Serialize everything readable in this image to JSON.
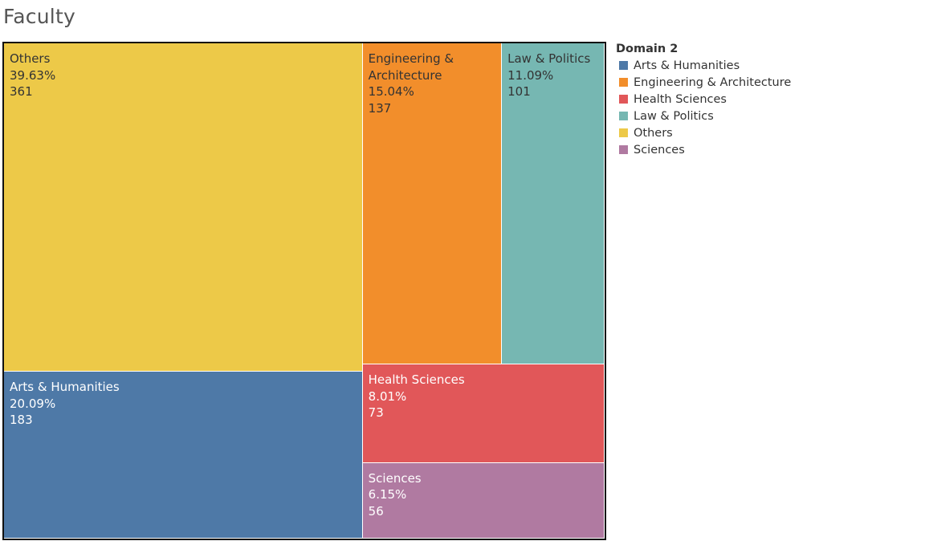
{
  "title": "Faculty",
  "legend": {
    "title": "Domain 2",
    "items": [
      {
        "label": "Arts & Humanities",
        "color": "#4e79a7"
      },
      {
        "label": "Engineering & Architecture",
        "color": "#f28e2b"
      },
      {
        "label": "Health Sciences",
        "color": "#e15759"
      },
      {
        "label": "Law & Politics",
        "color": "#76b7b2"
      },
      {
        "label": "Others",
        "color": "#edc948"
      },
      {
        "label": "Sciences",
        "color": "#b07aa1"
      }
    ]
  },
  "chart_data": {
    "type": "treemap",
    "title": "Faculty",
    "legend_title": "Domain 2",
    "legend_position": "right",
    "nodes": [
      {
        "name": "Others",
        "percent": "39.63%",
        "value": 361,
        "color": "#edc948",
        "text_color": "#333333",
        "name_lines": [
          "Others"
        ]
      },
      {
        "name": "Engineering & Architecture",
        "percent": "15.04%",
        "value": 137,
        "color": "#f28e2b",
        "text_color": "#333333",
        "name_lines": [
          "Engineering &",
          "Architecture"
        ]
      },
      {
        "name": "Law & Politics",
        "percent": "11.09%",
        "value": 101,
        "color": "#76b7b2",
        "text_color": "#333333",
        "name_lines": [
          "Law & Politics"
        ]
      },
      {
        "name": "Arts & Humanities",
        "percent": "20.09%",
        "value": 183,
        "color": "#4e79a7",
        "text_color": "#ffffff",
        "name_lines": [
          "Arts & Humanities"
        ]
      },
      {
        "name": "Health Sciences",
        "percent": "8.01%",
        "value": 73,
        "color": "#e15759",
        "text_color": "#ffffff",
        "name_lines": [
          "Health Sciences"
        ]
      },
      {
        "name": "Sciences",
        "percent": "6.15%",
        "value": 56,
        "color": "#b07aa1",
        "text_color": "#ffffff",
        "name_lines": [
          "Sciences"
        ]
      }
    ]
  }
}
